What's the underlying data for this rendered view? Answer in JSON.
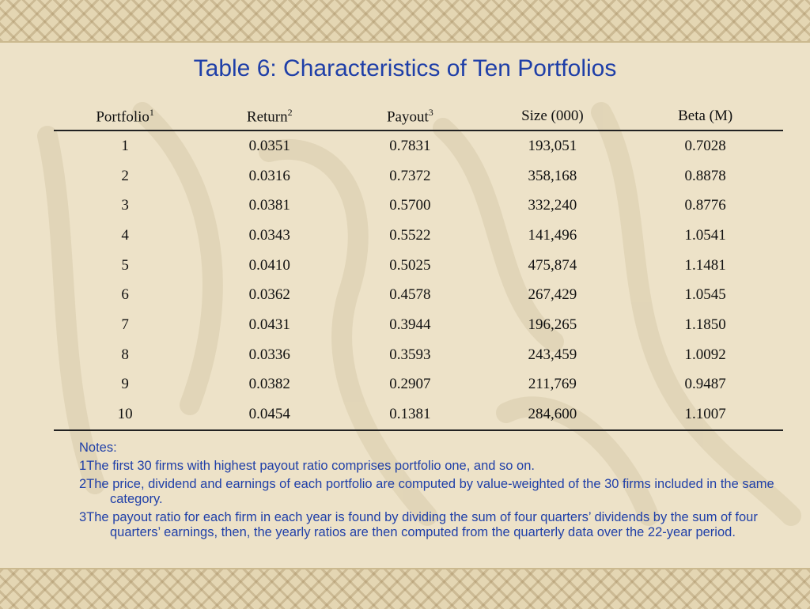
{
  "title": "Table 6: Characteristics of Ten Portfolios",
  "columns": [
    {
      "label": "Portfolio",
      "sup": "1"
    },
    {
      "label": "Return",
      "sup": "2"
    },
    {
      "label": "Payout",
      "sup": "3"
    },
    {
      "label": "Size (000)",
      "sup": ""
    },
    {
      "label": "Beta (M)",
      "sup": ""
    }
  ],
  "rows": [
    [
      "1",
      "0.0351",
      "0.7831",
      "193,051",
      "0.7028"
    ],
    [
      "2",
      "0.0316",
      "0.7372",
      "358,168",
      "0.8878"
    ],
    [
      "3",
      "0.0381",
      "0.5700",
      "332,240",
      "0.8776"
    ],
    [
      "4",
      "0.0343",
      "0.5522",
      "141,496",
      "1.0541"
    ],
    [
      "5",
      "0.0410",
      "0.5025",
      "475,874",
      "1.1481"
    ],
    [
      "6",
      "0.0362",
      "0.4578",
      "267,429",
      "1.0545"
    ],
    [
      "7",
      "0.0431",
      "0.3944",
      "196,265",
      "1.1850"
    ],
    [
      "8",
      "0.0336",
      "0.3593",
      "243,459",
      "1.0092"
    ],
    [
      "9",
      "0.0382",
      "0.2907",
      "211,769",
      "0.9487"
    ],
    [
      "10",
      "0.0454",
      "0.1381",
      "284,600",
      "1.1007"
    ]
  ],
  "notes": {
    "heading": "Notes:",
    "items": [
      "1The first 30 firms with highest payout ratio comprises portfolio one, and so on.",
      "2The price, dividend and earnings of each portfolio are computed by value-weighted of the 30 firms included in the same category.",
      "3The payout ratio for each firm in each year is found by dividing the sum of four quarters’ dividends by the sum of four quarters’ earnings, then, the yearly ratios are then computed from the quarterly data over the 22-year period."
    ]
  },
  "colors": {
    "title": "#1f3fa8",
    "notes": "#1f3fa8",
    "background": "#ede2c8",
    "border": "#e4d6b3"
  }
}
